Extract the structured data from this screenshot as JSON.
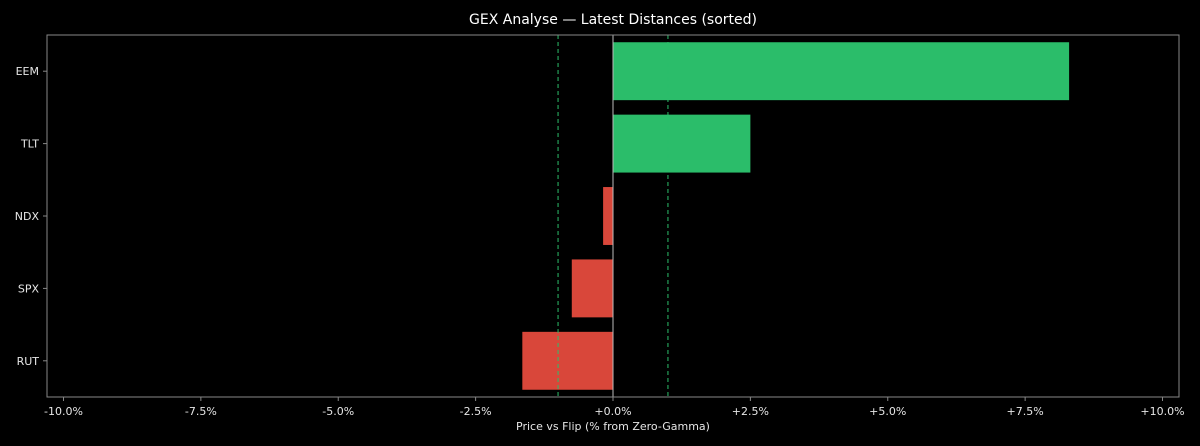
{
  "chart_data": {
    "type": "bar",
    "orientation": "horizontal",
    "title": "GEX Analyse — Latest Distances (sorted)",
    "xlabel": "Price vs Flip (% from Zero-Gamma)",
    "ylabel": "",
    "categories": [
      "EEM",
      "TLT",
      "NDX",
      "SPX",
      "RUT"
    ],
    "values": [
      8.3,
      2.5,
      -0.18,
      -0.75,
      -1.65
    ],
    "xlim": [
      -10.3,
      10.3
    ],
    "xticks": [
      -10,
      -7.5,
      -5,
      -2.5,
      0,
      2.5,
      5,
      7.5,
      10
    ],
    "xtick_labels": [
      "-10.0%",
      "-7.5%",
      "-5.0%",
      "-2.5%",
      "+0.0%",
      "+2.5%",
      "+5.0%",
      "+7.5%",
      "+10.0%"
    ],
    "reference_lines": {
      "zero": 0,
      "bands": [
        -1.0,
        1.0
      ]
    },
    "colors": {
      "positive": "#2bbd6a",
      "negative": "#d9473a",
      "band_line": "#2bbd6a",
      "zero_line": "#bbbbbb",
      "frame": "#888888",
      "background": "#000000"
    },
    "grid": false,
    "legend": "none"
  }
}
